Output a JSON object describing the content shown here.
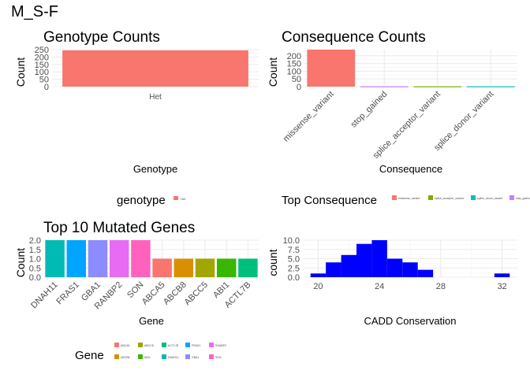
{
  "page_title": "M_S-F",
  "chart_data": [
    {
      "id": "genotype",
      "type": "bar",
      "title": "Genotype Counts",
      "xlabel": "Genotype",
      "ylabel": "Count",
      "categories": [
        "Het"
      ],
      "values": [
        245
      ],
      "colors": [
        "#F8766D"
      ],
      "ylim": [
        0,
        250
      ],
      "yticks": [
        0,
        50,
        100,
        150,
        200,
        250
      ],
      "ytick_labels": [
        "0",
        "50",
        "100",
        "150",
        "200",
        "250"
      ],
      "grid": true,
      "legend": {
        "title": "genotype",
        "position": "bottom",
        "entries": [
          {
            "label": "Het",
            "color": "#F8766D"
          }
        ]
      }
    },
    {
      "id": "consequence",
      "type": "bar",
      "title": "Consequence Counts",
      "xlabel": "Consequence",
      "ylabel": "Count",
      "categories": [
        "missense_variant",
        "stop_gained",
        "splice_acceptor_variant",
        "splice_donor_variant"
      ],
      "values": [
        240,
        2,
        2,
        2
      ],
      "colors": [
        "#F8766D",
        "#C77CFF",
        "#7CAE00",
        "#00BFC4"
      ],
      "ylim": [
        0,
        240
      ],
      "yticks": [
        0,
        50,
        100,
        150,
        200
      ],
      "ytick_labels": [
        "0",
        "50",
        "100",
        "150",
        "200"
      ],
      "grid": true,
      "legend": {
        "title": "Top Consequence",
        "position": "bottom",
        "entries": [
          {
            "label": "missense_variant",
            "color": "#F8766D"
          },
          {
            "label": "splice_acceptor_variant",
            "color": "#7CAE00"
          },
          {
            "label": "splice_donor_variant",
            "color": "#00BFC4"
          },
          {
            "label": "stop_gained",
            "color": "#C77CFF"
          }
        ]
      }
    },
    {
      "id": "genes",
      "type": "bar",
      "title": "Top 10 Mutated Genes",
      "xlabel": "Gene",
      "ylabel": "Count",
      "categories": [
        "DNAH11",
        "FRAS1",
        "GBA1",
        "RANBP2",
        "SON",
        "ABCA5",
        "ABCB8",
        "ABCC5",
        "ABI1",
        "ACTL7B"
      ],
      "values": [
        2,
        2,
        2,
        2,
        2,
        1,
        1,
        1,
        1,
        1
      ],
      "colors": [
        "#00BAB4",
        "#00A5FF",
        "#8B8CFF",
        "#E76BF3",
        "#FF62BC",
        "#F8766D",
        "#D89000",
        "#A3A500",
        "#39B600",
        "#00BF7D"
      ],
      "ylim": [
        0,
        2
      ],
      "yticks": [
        0,
        0.5,
        1,
        1.5,
        2
      ],
      "ytick_labels": [
        "0.0",
        "0.5",
        "1.0",
        "1.5",
        "2.0"
      ],
      "grid": true,
      "legend": {
        "title": "Gene",
        "position": "bottom",
        "entries": [
          {
            "label": "ABCA5",
            "color": "#F8766D"
          },
          {
            "label": "ABCB8",
            "color": "#D89000"
          },
          {
            "label": "ABCC5",
            "color": "#A3A500"
          },
          {
            "label": "ABI1",
            "color": "#39B600"
          },
          {
            "label": "ACTL7B",
            "color": "#00BF7D"
          },
          {
            "label": "DNAH11",
            "color": "#00BAB4"
          },
          {
            "label": "FRAS1",
            "color": "#00A5FF"
          },
          {
            "label": "GBA1",
            "color": "#8B8CFF"
          },
          {
            "label": "RANBP2",
            "color": "#E76BF3"
          },
          {
            "label": "SON",
            "color": "#FF62BC"
          }
        ]
      }
    },
    {
      "id": "cadd",
      "type": "bar",
      "subtype": "histogram",
      "title": "",
      "xlabel": "CADD Conservation",
      "ylabel": "count",
      "bins": [
        {
          "start": 19.5,
          "end": 20.5,
          "count": 1
        },
        {
          "start": 20.5,
          "end": 21.5,
          "count": 4
        },
        {
          "start": 21.5,
          "end": 22.5,
          "count": 6
        },
        {
          "start": 22.5,
          "end": 23.5,
          "count": 9
        },
        {
          "start": 23.5,
          "end": 24.5,
          "count": 10
        },
        {
          "start": 24.5,
          "end": 25.5,
          "count": 5
        },
        {
          "start": 25.5,
          "end": 26.5,
          "count": 4
        },
        {
          "start": 26.5,
          "end": 27.5,
          "count": 2
        },
        {
          "start": 27.5,
          "end": 28.5,
          "count": 0
        },
        {
          "start": 28.5,
          "end": 29.5,
          "count": 0
        },
        {
          "start": 29.5,
          "end": 30.5,
          "count": 0
        },
        {
          "start": 30.5,
          "end": 31.5,
          "count": 0
        },
        {
          "start": 31.5,
          "end": 32.5,
          "count": 1
        }
      ],
      "color": "#0000FF",
      "xlim": [
        19,
        33
      ],
      "xticks": [
        20,
        24,
        28,
        32
      ],
      "xtick_labels": [
        "20",
        "24",
        "28",
        "32"
      ],
      "ylim": [
        0,
        10
      ],
      "yticks": [
        0,
        2.5,
        5,
        7.5,
        10
      ],
      "ytick_labels": [
        "0.0",
        "2.5",
        "5.0",
        "7.5",
        "10.0"
      ],
      "grid": true
    }
  ]
}
